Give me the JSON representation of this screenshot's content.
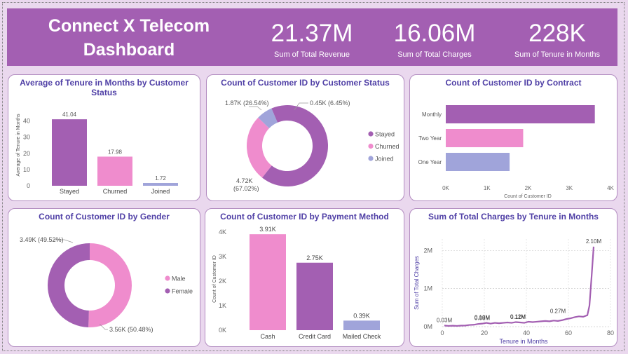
{
  "header": {
    "title_line1": "Connect X Telecom",
    "title_line2": "Dashboard",
    "kpis": [
      {
        "value": "21.37M",
        "label": "Sum of Total Revenue"
      },
      {
        "value": "16.06M",
        "label": "Sum of Total Charges"
      },
      {
        "value": "228K",
        "label": "Sum of Tenure in Months"
      }
    ]
  },
  "chart_data": [
    {
      "type": "bar",
      "title": "Average of Tenure in Months by Customer Status",
      "ylabel": "Average of Tenure in Months",
      "categories": [
        "Stayed",
        "Churned",
        "Joined"
      ],
      "values": [
        41.04,
        17.98,
        1.72
      ],
      "data_labels": [
        "41.04",
        "17.98",
        "1.72"
      ],
      "colors": [
        "#a35fb2",
        "#ef8ccd",
        "#a0a4da"
      ],
      "yticks": [
        0,
        10,
        20,
        30,
        40
      ],
      "ylim": [
        0,
        45
      ],
      "grid": false
    },
    {
      "type": "pie",
      "title": "Count of Customer ID by Customer Status",
      "categories": [
        "Stayed",
        "Churned",
        "Joined"
      ],
      "values": [
        4.72,
        1.87,
        0.45
      ],
      "data_labels": [
        "4.72K",
        "1.87K (26.54%)",
        "0.45K (6.45%)"
      ],
      "label_extra": "(67.02%)",
      "colors": [
        "#a35fb2",
        "#ef8ccd",
        "#a0a4da"
      ],
      "legend": "right"
    },
    {
      "type": "bar",
      "orientation": "horizontal",
      "title": "Count of Customer ID by Contract",
      "xlabel": "Count of Customer ID",
      "categories": [
        "Monthly",
        "Two Year",
        "One Year"
      ],
      "values": [
        3.62,
        1.88,
        1.55
      ],
      "colors": [
        "#a35fb2",
        "#ef8ccd",
        "#a0a4da"
      ],
      "xticks": [
        "0K",
        "1K",
        "2K",
        "3K",
        "4K"
      ],
      "xlim": [
        0,
        4
      ]
    },
    {
      "type": "pie",
      "title": "Count of Customer ID by Gender",
      "categories": [
        "Male",
        "Female"
      ],
      "values": [
        3.56,
        3.49
      ],
      "data_labels": [
        "3.56K (50.48%)",
        "3.49K (49.52%)"
      ],
      "colors": [
        "#ef8ccd",
        "#a35fb2"
      ],
      "legend": "right"
    },
    {
      "type": "bar",
      "title": "Count of Customer ID by Payment Method",
      "ylabel": "Count of Customer ID",
      "categories": [
        "Cash",
        "Credit Card",
        "Mailed Check"
      ],
      "values": [
        3.91,
        2.75,
        0.39
      ],
      "data_labels": [
        "3.91K",
        "2.75K",
        "0.39K"
      ],
      "colors": [
        "#ef8ccd",
        "#a35fb2",
        "#a0a4da"
      ],
      "yticks": [
        "0K",
        "1K",
        "2K",
        "3K",
        "4K"
      ],
      "ylim": [
        0,
        4
      ]
    },
    {
      "type": "line",
      "title": "Sum of Total Charges by Tenure in Months",
      "xlabel": "Tenure in Months",
      "ylabel": "Sum of Total Charges",
      "x": [
        1,
        3,
        5,
        7,
        9,
        11,
        13,
        15,
        17,
        19,
        21,
        23,
        25,
        27,
        29,
        31,
        33,
        35,
        37,
        39,
        41,
        43,
        45,
        47,
        49,
        51,
        53,
        55,
        57,
        59,
        61,
        63,
        65,
        67,
        69,
        70,
        71,
        72
      ],
      "y": [
        0.03,
        0.02,
        0.025,
        0.02,
        0.028,
        0.03,
        0.045,
        0.05,
        0.07,
        0.08,
        0.1,
        0.08,
        0.1,
        0.09,
        0.1,
        0.11,
        0.1,
        0.12,
        0.11,
        0.1,
        0.13,
        0.12,
        0.13,
        0.14,
        0.15,
        0.14,
        0.16,
        0.15,
        0.17,
        0.2,
        0.22,
        0.25,
        0.27,
        0.26,
        0.3,
        0.55,
        1.3,
        2.1
      ],
      "data_labels": [
        {
          "text": "0.03M",
          "x": 1,
          "y": 0.03
        },
        {
          "text": "0.10M",
          "x": 19,
          "y": 0.1
        },
        {
          "text": "0.08M",
          "x": 19,
          "y": 0.08
        },
        {
          "text": "0.12M",
          "x": 36,
          "y": 0.12
        },
        {
          "text": "0.11M",
          "x": 36,
          "y": 0.11
        },
        {
          "text": "0.27M",
          "x": 55,
          "y": 0.27
        },
        {
          "text": "2.10M",
          "x": 72,
          "y": 2.1
        }
      ],
      "xticks": [
        0,
        20,
        40,
        60,
        80
      ],
      "yticks": [
        {
          "v": 0,
          "t": "0M"
        },
        {
          "v": 1,
          "t": "1M"
        },
        {
          "v": 2,
          "t": "2M"
        }
      ],
      "xlim": [
        0,
        80
      ],
      "ylim": [
        0,
        2.3
      ],
      "color": "#a35fb2",
      "grid": true
    }
  ]
}
